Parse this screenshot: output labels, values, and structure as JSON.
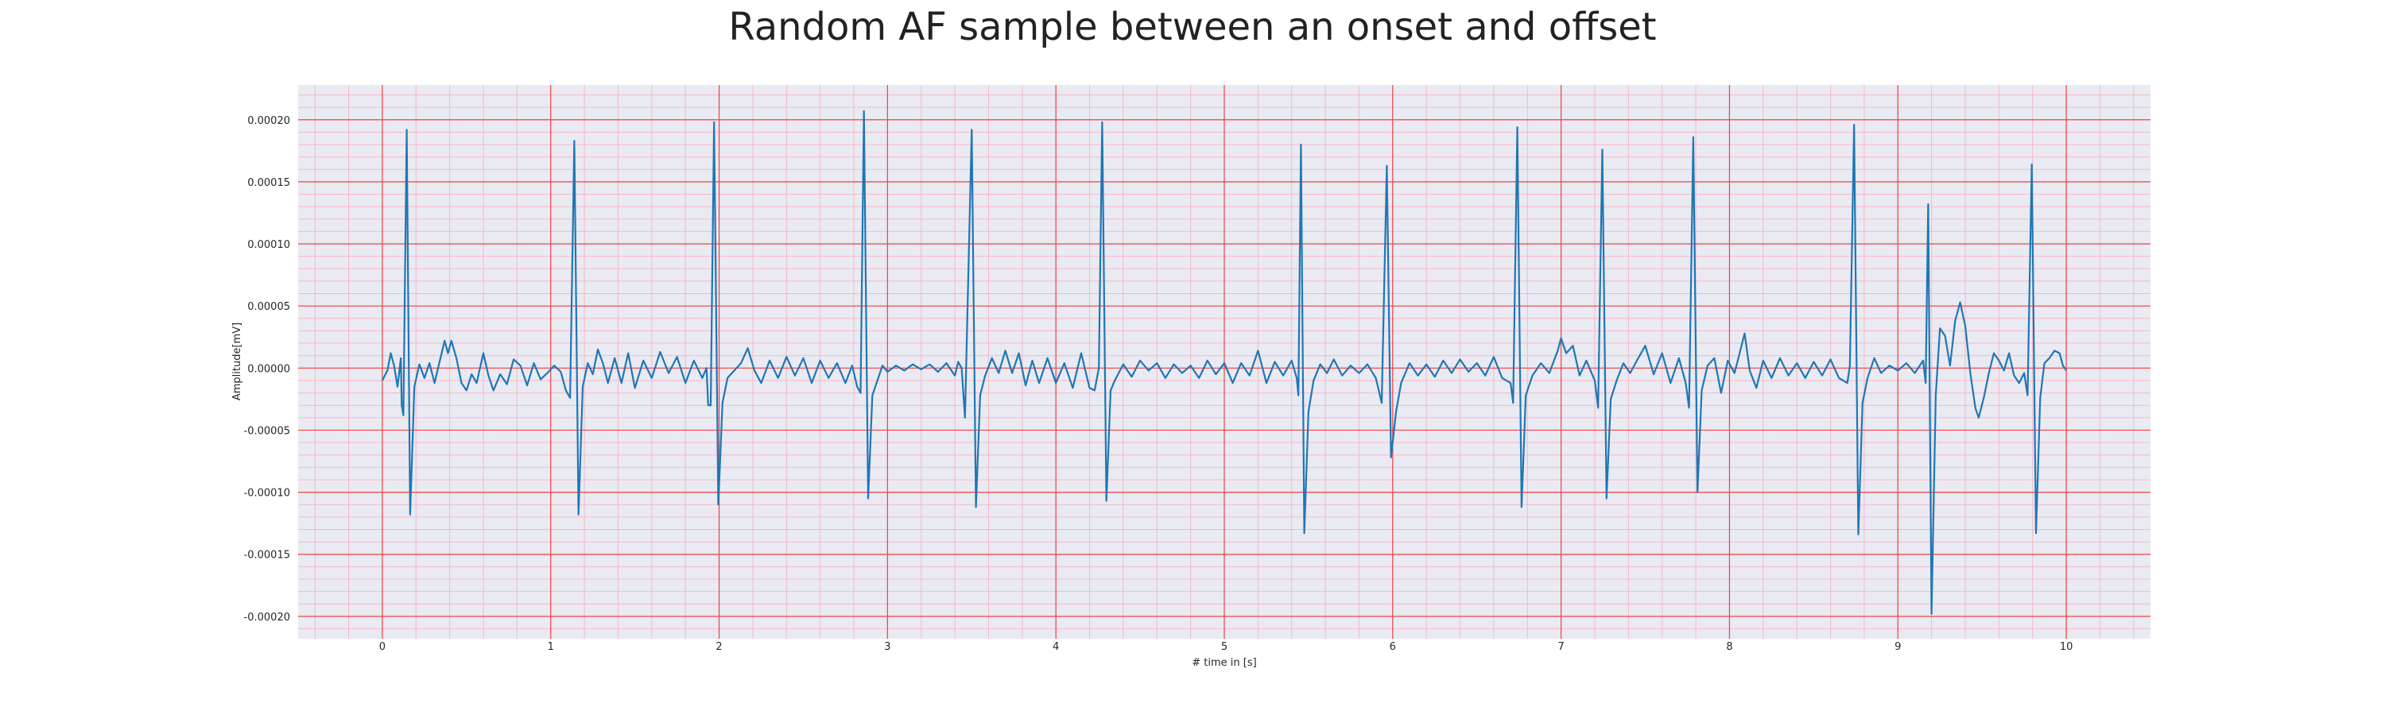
{
  "chart_data": {
    "type": "line",
    "title": "Random AF sample between an onset and offset",
    "xlabel": "# time in [s]",
    "ylabel": "Amplitude[mV]",
    "xlim": [
      -0.5,
      10.5
    ],
    "ylim": [
      -0.000218,
      0.000228
    ],
    "xticks": [
      0,
      1,
      2,
      3,
      4,
      5,
      6,
      7,
      8,
      9,
      10
    ],
    "xtick_labels": [
      "0",
      "1",
      "2",
      "3",
      "4",
      "5",
      "6",
      "7",
      "8",
      "9",
      "10"
    ],
    "yticks": [
      -0.0002,
      -0.00015,
      -0.0001,
      -5e-05,
      0,
      5e-05,
      0.0001,
      0.00015,
      0.0002
    ],
    "ytick_labels": [
      "-0.00020",
      "-0.00015",
      "-0.00010",
      "-0.00005",
      "0.00000",
      "0.00005",
      "0.00010",
      "0.00015",
      "0.00020"
    ],
    "grid": true,
    "series": [
      {
        "color": "#1f77b4",
        "points": [
          [
            0.0,
            -1e-05
          ],
          [
            0.03,
            -2e-06
          ],
          [
            0.05,
            1.2e-05
          ],
          [
            0.07,
            2e-06
          ],
          [
            0.09,
            -1.5e-05
          ],
          [
            0.11,
            8e-06
          ],
          [
            0.115,
            -3e-05
          ],
          [
            0.125,
            -3.8e-05
          ],
          [
            0.145,
            0.000192
          ],
          [
            0.165,
            -0.000118
          ],
          [
            0.19,
            -1.5e-05
          ],
          [
            0.22,
            3e-06
          ],
          [
            0.25,
            -8e-06
          ],
          [
            0.28,
            4e-06
          ],
          [
            0.31,
            -1.2e-05
          ],
          [
            0.34,
            5e-06
          ],
          [
            0.37,
            2.2e-05
          ],
          [
            0.39,
            1.2e-05
          ],
          [
            0.41,
            2.2e-05
          ],
          [
            0.44,
            8e-06
          ],
          [
            0.47,
            -1.2e-05
          ],
          [
            0.5,
            -1.8e-05
          ],
          [
            0.53,
            -5e-06
          ],
          [
            0.56,
            -1.2e-05
          ],
          [
            0.6,
            1.2e-05
          ],
          [
            0.63,
            -6e-06
          ],
          [
            0.66,
            -1.8e-05
          ],
          [
            0.7,
            -5e-06
          ],
          [
            0.74,
            -1.3e-05
          ],
          [
            0.78,
            7e-06
          ],
          [
            0.82,
            2e-06
          ],
          [
            0.86,
            -1.4e-05
          ],
          [
            0.9,
            4e-06
          ],
          [
            0.94,
            -9e-06
          ],
          [
            0.98,
            -4e-06
          ],
          [
            1.02,
            2e-06
          ],
          [
            1.06,
            -3e-06
          ],
          [
            1.09,
            -1.8e-05
          ],
          [
            1.115,
            -2.4e-05
          ],
          [
            1.14,
            0.000183
          ],
          [
            1.165,
            -0.000118
          ],
          [
            1.19,
            -1.5e-05
          ],
          [
            1.22,
            4e-06
          ],
          [
            1.25,
            -5e-06
          ],
          [
            1.28,
            1.5e-05
          ],
          [
            1.31,
            4e-06
          ],
          [
            1.34,
            -1.2e-05
          ],
          [
            1.38,
            8e-06
          ],
          [
            1.42,
            -1.2e-05
          ],
          [
            1.46,
            1.2e-05
          ],
          [
            1.5,
            -1.6e-05
          ],
          [
            1.55,
            6e-06
          ],
          [
            1.6,
            -8e-06
          ],
          [
            1.65,
            1.3e-05
          ],
          [
            1.7,
            -4e-06
          ],
          [
            1.75,
            9e-06
          ],
          [
            1.8,
            -1.2e-05
          ],
          [
            1.85,
            6e-06
          ],
          [
            1.9,
            -8e-06
          ],
          [
            1.925,
            0.0
          ],
          [
            1.935,
            -3e-05
          ],
          [
            1.95,
            -3e-05
          ],
          [
            1.97,
            0.000198
          ],
          [
            1.995,
            -0.00011
          ],
          [
            2.02,
            -2.8e-05
          ],
          [
            2.05,
            -8e-06
          ],
          [
            2.09,
            -2e-06
          ],
          [
            2.13,
            4e-06
          ],
          [
            2.17,
            1.6e-05
          ],
          [
            2.21,
            -2e-06
          ],
          [
            2.25,
            -1.2e-05
          ],
          [
            2.3,
            6e-06
          ],
          [
            2.35,
            -8e-06
          ],
          [
            2.4,
            9e-06
          ],
          [
            2.45,
            -6e-06
          ],
          [
            2.5,
            8e-06
          ],
          [
            2.55,
            -1.2e-05
          ],
          [
            2.6,
            6e-06
          ],
          [
            2.65,
            -8e-06
          ],
          [
            2.7,
            4e-06
          ],
          [
            2.75,
            -1.2e-05
          ],
          [
            2.79,
            2e-06
          ],
          [
            2.82,
            -1.5e-05
          ],
          [
            2.84,
            -2e-05
          ],
          [
            2.86,
            0.000207
          ],
          [
            2.885,
            -0.000105
          ],
          [
            2.91,
            -2.2e-05
          ],
          [
            2.94,
            -1e-05
          ],
          [
            2.97,
            2e-06
          ],
          [
            3.0,
            -3e-06
          ],
          [
            3.05,
            2e-06
          ],
          [
            3.1,
            -2e-06
          ],
          [
            3.15,
            3e-06
          ],
          [
            3.2,
            -1e-06
          ],
          [
            3.25,
            3e-06
          ],
          [
            3.3,
            -3e-06
          ],
          [
            3.35,
            4e-06
          ],
          [
            3.4,
            -6e-06
          ],
          [
            3.42,
            5e-06
          ],
          [
            3.44,
            0.0
          ],
          [
            3.46,
            -4e-05
          ],
          [
            3.5,
            0.000192
          ],
          [
            3.525,
            -0.000112
          ],
          [
            3.55,
            -2.2e-05
          ],
          [
            3.58,
            -6e-06
          ],
          [
            3.62,
            8e-06
          ],
          [
            3.66,
            -4e-06
          ],
          [
            3.7,
            1.4e-05
          ],
          [
            3.74,
            -4e-06
          ],
          [
            3.78,
            1.2e-05
          ],
          [
            3.82,
            -1.4e-05
          ],
          [
            3.86,
            6e-06
          ],
          [
            3.9,
            -1.2e-05
          ],
          [
            3.95,
            8e-06
          ],
          [
            4.0,
            -1.2e-05
          ],
          [
            4.05,
            4e-06
          ],
          [
            4.1,
            -1.6e-05
          ],
          [
            4.15,
            1.2e-05
          ],
          [
            4.2,
            -1.6e-05
          ],
          [
            4.23,
            -1.8e-05
          ],
          [
            4.255,
            0.0
          ],
          [
            4.275,
            0.000198
          ],
          [
            4.3,
            -0.000107
          ],
          [
            4.325,
            -1.8e-05
          ],
          [
            4.35,
            -1e-05
          ],
          [
            4.4,
            3e-06
          ],
          [
            4.45,
            -7e-06
          ],
          [
            4.5,
            6e-06
          ],
          [
            4.55,
            -2e-06
          ],
          [
            4.6,
            4e-06
          ],
          [
            4.65,
            -8e-06
          ],
          [
            4.7,
            3e-06
          ],
          [
            4.75,
            -4e-06
          ],
          [
            4.8,
            2e-06
          ],
          [
            4.85,
            -8e-06
          ],
          [
            4.9,
            6e-06
          ],
          [
            4.95,
            -5e-06
          ],
          [
            5.0,
            4e-06
          ],
          [
            5.05,
            -1.2e-05
          ],
          [
            5.1,
            4e-06
          ],
          [
            5.15,
            -6e-06
          ],
          [
            5.2,
            1.4e-05
          ],
          [
            5.25,
            -1.2e-05
          ],
          [
            5.3,
            5e-06
          ],
          [
            5.35,
            -6e-06
          ],
          [
            5.4,
            6e-06
          ],
          [
            5.43,
            -8e-06
          ],
          [
            5.44,
            -2.2e-05
          ],
          [
            5.455,
            0.00018
          ],
          [
            5.475,
            -0.000133
          ],
          [
            5.5,
            -3.5e-05
          ],
          [
            5.53,
            -1e-05
          ],
          [
            5.57,
            3e-06
          ],
          [
            5.61,
            -4e-06
          ],
          [
            5.65,
            7e-06
          ],
          [
            5.7,
            -6e-06
          ],
          [
            5.75,
            2e-06
          ],
          [
            5.8,
            -4e-06
          ],
          [
            5.85,
            3e-06
          ],
          [
            5.9,
            -8e-06
          ],
          [
            5.935,
            -2.8e-05
          ],
          [
            5.965,
            0.000163
          ],
          [
            5.99,
            -7.2e-05
          ],
          [
            6.02,
            -3.5e-05
          ],
          [
            6.05,
            -1.2e-05
          ],
          [
            6.1,
            4e-06
          ],
          [
            6.15,
            -6e-06
          ],
          [
            6.2,
            3e-06
          ],
          [
            6.25,
            -7e-06
          ],
          [
            6.3,
            6e-06
          ],
          [
            6.35,
            -4e-06
          ],
          [
            6.4,
            7e-06
          ],
          [
            6.45,
            -3e-06
          ],
          [
            6.5,
            4e-06
          ],
          [
            6.55,
            -6e-06
          ],
          [
            6.6,
            9e-06
          ],
          [
            6.65,
            -8e-06
          ],
          [
            6.7,
            -1.2e-05
          ],
          [
            6.715,
            -2.8e-05
          ],
          [
            6.74,
            0.000194
          ],
          [
            6.765,
            -0.000112
          ],
          [
            6.79,
            -2.2e-05
          ],
          [
            6.83,
            -6e-06
          ],
          [
            6.88,
            4e-06
          ],
          [
            6.93,
            -4e-06
          ],
          [
            6.98,
            1.4e-05
          ],
          [
            7.0,
            2.4e-05
          ],
          [
            7.03,
            1.2e-05
          ],
          [
            7.07,
            1.8e-05
          ],
          [
            7.11,
            -6e-06
          ],
          [
            7.15,
            6e-06
          ],
          [
            7.2,
            -1e-05
          ],
          [
            7.22,
            -3.2e-05
          ],
          [
            7.245,
            0.000176
          ],
          [
            7.27,
            -0.000105
          ],
          [
            7.295,
            -2.5e-05
          ],
          [
            7.33,
            -1e-05
          ],
          [
            7.37,
            4e-06
          ],
          [
            7.41,
            -4e-06
          ],
          [
            7.45,
            6e-06
          ],
          [
            7.5,
            1.8e-05
          ],
          [
            7.55,
            -5e-06
          ],
          [
            7.6,
            1.2e-05
          ],
          [
            7.65,
            -1.2e-05
          ],
          [
            7.7,
            8e-06
          ],
          [
            7.74,
            -1.2e-05
          ],
          [
            7.76,
            -3.2e-05
          ],
          [
            7.785,
            0.000186
          ],
          [
            7.81,
            -0.0001
          ],
          [
            7.835,
            -1.8e-05
          ],
          [
            7.87,
            2e-06
          ],
          [
            7.91,
            8e-06
          ],
          [
            7.95,
            -2e-05
          ],
          [
            7.99,
            6e-06
          ],
          [
            8.03,
            -4e-06
          ],
          [
            8.06,
            1.2e-05
          ],
          [
            8.09,
            2.8e-05
          ],
          [
            8.12,
            -2e-06
          ],
          [
            8.16,
            -1.6e-05
          ],
          [
            8.2,
            6e-06
          ],
          [
            8.25,
            -8e-06
          ],
          [
            8.3,
            8e-06
          ],
          [
            8.35,
            -6e-06
          ],
          [
            8.4,
            4e-06
          ],
          [
            8.45,
            -8e-06
          ],
          [
            8.5,
            5e-06
          ],
          [
            8.55,
            -6e-06
          ],
          [
            8.6,
            7e-06
          ],
          [
            8.65,
            -8e-06
          ],
          [
            8.7,
            -1.2e-05
          ],
          [
            8.715,
            2e-06
          ],
          [
            8.74,
            0.000196
          ],
          [
            8.765,
            -0.000134
          ],
          [
            8.79,
            -2.8e-05
          ],
          [
            8.82,
            -8e-06
          ],
          [
            8.86,
            8e-06
          ],
          [
            8.9,
            -4e-06
          ],
          [
            8.95,
            2e-06
          ],
          [
            9.0,
            -2e-06
          ],
          [
            9.05,
            4e-06
          ],
          [
            9.1,
            -4e-06
          ],
          [
            9.15,
            6e-06
          ],
          [
            9.165,
            -1.2e-05
          ],
          [
            9.18,
            0.000132
          ],
          [
            9.2,
            -0.000198
          ],
          [
            9.225,
            -2.2e-05
          ],
          [
            9.25,
            3.2e-05
          ],
          [
            9.28,
            2.6e-05
          ],
          [
            9.31,
            2e-06
          ],
          [
            9.34,
            3.8e-05
          ],
          [
            9.37,
            5.3e-05
          ],
          [
            9.4,
            3.4e-05
          ],
          [
            9.43,
            -4e-06
          ],
          [
            9.46,
            -3.2e-05
          ],
          [
            9.48,
            -4e-05
          ],
          [
            9.51,
            -2.4e-05
          ],
          [
            9.54,
            -4e-06
          ],
          [
            9.57,
            1.2e-05
          ],
          [
            9.6,
            6e-06
          ],
          [
            9.63,
            -2e-06
          ],
          [
            9.66,
            1.2e-05
          ],
          [
            9.69,
            -6e-06
          ],
          [
            9.72,
            -1.2e-05
          ],
          [
            9.75,
            -4e-06
          ],
          [
            9.77,
            -2.2e-05
          ],
          [
            9.795,
            0.000164
          ],
          [
            9.82,
            -0.000133
          ],
          [
            9.845,
            -2.4e-05
          ],
          [
            9.87,
            4e-06
          ],
          [
            9.9,
            8e-06
          ],
          [
            9.93,
            1.4e-05
          ],
          [
            9.96,
            1.2e-05
          ],
          [
            9.98,
            2e-06
          ],
          [
            10.0,
            -2e-06
          ]
        ]
      }
    ]
  }
}
